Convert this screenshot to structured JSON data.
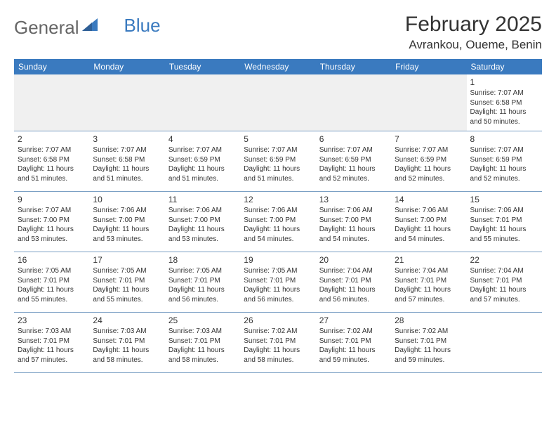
{
  "logo": {
    "part1": "General",
    "part2": "Blue"
  },
  "title": "February 2025",
  "location": "Avrankou, Oueme, Benin",
  "colors": {
    "header_bg": "#3a7abf",
    "header_text": "#ffffff",
    "row_border": "#7a9fc4",
    "empty_bg": "#f0f0f0",
    "text": "#333333",
    "logo_gray": "#666666",
    "logo_blue": "#3a7abf"
  },
  "weekdays": [
    "Sunday",
    "Monday",
    "Tuesday",
    "Wednesday",
    "Thursday",
    "Friday",
    "Saturday"
  ],
  "weeks": [
    [
      null,
      null,
      null,
      null,
      null,
      null,
      {
        "d": "1",
        "sr": "7:07 AM",
        "ss": "6:58 PM",
        "dl": "11 hours and 50 minutes."
      }
    ],
    [
      {
        "d": "2",
        "sr": "7:07 AM",
        "ss": "6:58 PM",
        "dl": "11 hours and 51 minutes."
      },
      {
        "d": "3",
        "sr": "7:07 AM",
        "ss": "6:58 PM",
        "dl": "11 hours and 51 minutes."
      },
      {
        "d": "4",
        "sr": "7:07 AM",
        "ss": "6:59 PM",
        "dl": "11 hours and 51 minutes."
      },
      {
        "d": "5",
        "sr": "7:07 AM",
        "ss": "6:59 PM",
        "dl": "11 hours and 51 minutes."
      },
      {
        "d": "6",
        "sr": "7:07 AM",
        "ss": "6:59 PM",
        "dl": "11 hours and 52 minutes."
      },
      {
        "d": "7",
        "sr": "7:07 AM",
        "ss": "6:59 PM",
        "dl": "11 hours and 52 minutes."
      },
      {
        "d": "8",
        "sr": "7:07 AM",
        "ss": "6:59 PM",
        "dl": "11 hours and 52 minutes."
      }
    ],
    [
      {
        "d": "9",
        "sr": "7:07 AM",
        "ss": "7:00 PM",
        "dl": "11 hours and 53 minutes."
      },
      {
        "d": "10",
        "sr": "7:06 AM",
        "ss": "7:00 PM",
        "dl": "11 hours and 53 minutes."
      },
      {
        "d": "11",
        "sr": "7:06 AM",
        "ss": "7:00 PM",
        "dl": "11 hours and 53 minutes."
      },
      {
        "d": "12",
        "sr": "7:06 AM",
        "ss": "7:00 PM",
        "dl": "11 hours and 54 minutes."
      },
      {
        "d": "13",
        "sr": "7:06 AM",
        "ss": "7:00 PM",
        "dl": "11 hours and 54 minutes."
      },
      {
        "d": "14",
        "sr": "7:06 AM",
        "ss": "7:00 PM",
        "dl": "11 hours and 54 minutes."
      },
      {
        "d": "15",
        "sr": "7:06 AM",
        "ss": "7:01 PM",
        "dl": "11 hours and 55 minutes."
      }
    ],
    [
      {
        "d": "16",
        "sr": "7:05 AM",
        "ss": "7:01 PM",
        "dl": "11 hours and 55 minutes."
      },
      {
        "d": "17",
        "sr": "7:05 AM",
        "ss": "7:01 PM",
        "dl": "11 hours and 55 minutes."
      },
      {
        "d": "18",
        "sr": "7:05 AM",
        "ss": "7:01 PM",
        "dl": "11 hours and 56 minutes."
      },
      {
        "d": "19",
        "sr": "7:05 AM",
        "ss": "7:01 PM",
        "dl": "11 hours and 56 minutes."
      },
      {
        "d": "20",
        "sr": "7:04 AM",
        "ss": "7:01 PM",
        "dl": "11 hours and 56 minutes."
      },
      {
        "d": "21",
        "sr": "7:04 AM",
        "ss": "7:01 PM",
        "dl": "11 hours and 57 minutes."
      },
      {
        "d": "22",
        "sr": "7:04 AM",
        "ss": "7:01 PM",
        "dl": "11 hours and 57 minutes."
      }
    ],
    [
      {
        "d": "23",
        "sr": "7:03 AM",
        "ss": "7:01 PM",
        "dl": "11 hours and 57 minutes."
      },
      {
        "d": "24",
        "sr": "7:03 AM",
        "ss": "7:01 PM",
        "dl": "11 hours and 58 minutes."
      },
      {
        "d": "25",
        "sr": "7:03 AM",
        "ss": "7:01 PM",
        "dl": "11 hours and 58 minutes."
      },
      {
        "d": "26",
        "sr": "7:02 AM",
        "ss": "7:01 PM",
        "dl": "11 hours and 58 minutes."
      },
      {
        "d": "27",
        "sr": "7:02 AM",
        "ss": "7:01 PM",
        "dl": "11 hours and 59 minutes."
      },
      {
        "d": "28",
        "sr": "7:02 AM",
        "ss": "7:01 PM",
        "dl": "11 hours and 59 minutes."
      },
      null
    ]
  ],
  "labels": {
    "sunrise": "Sunrise:",
    "sunset": "Sunset:",
    "daylight": "Daylight:"
  }
}
